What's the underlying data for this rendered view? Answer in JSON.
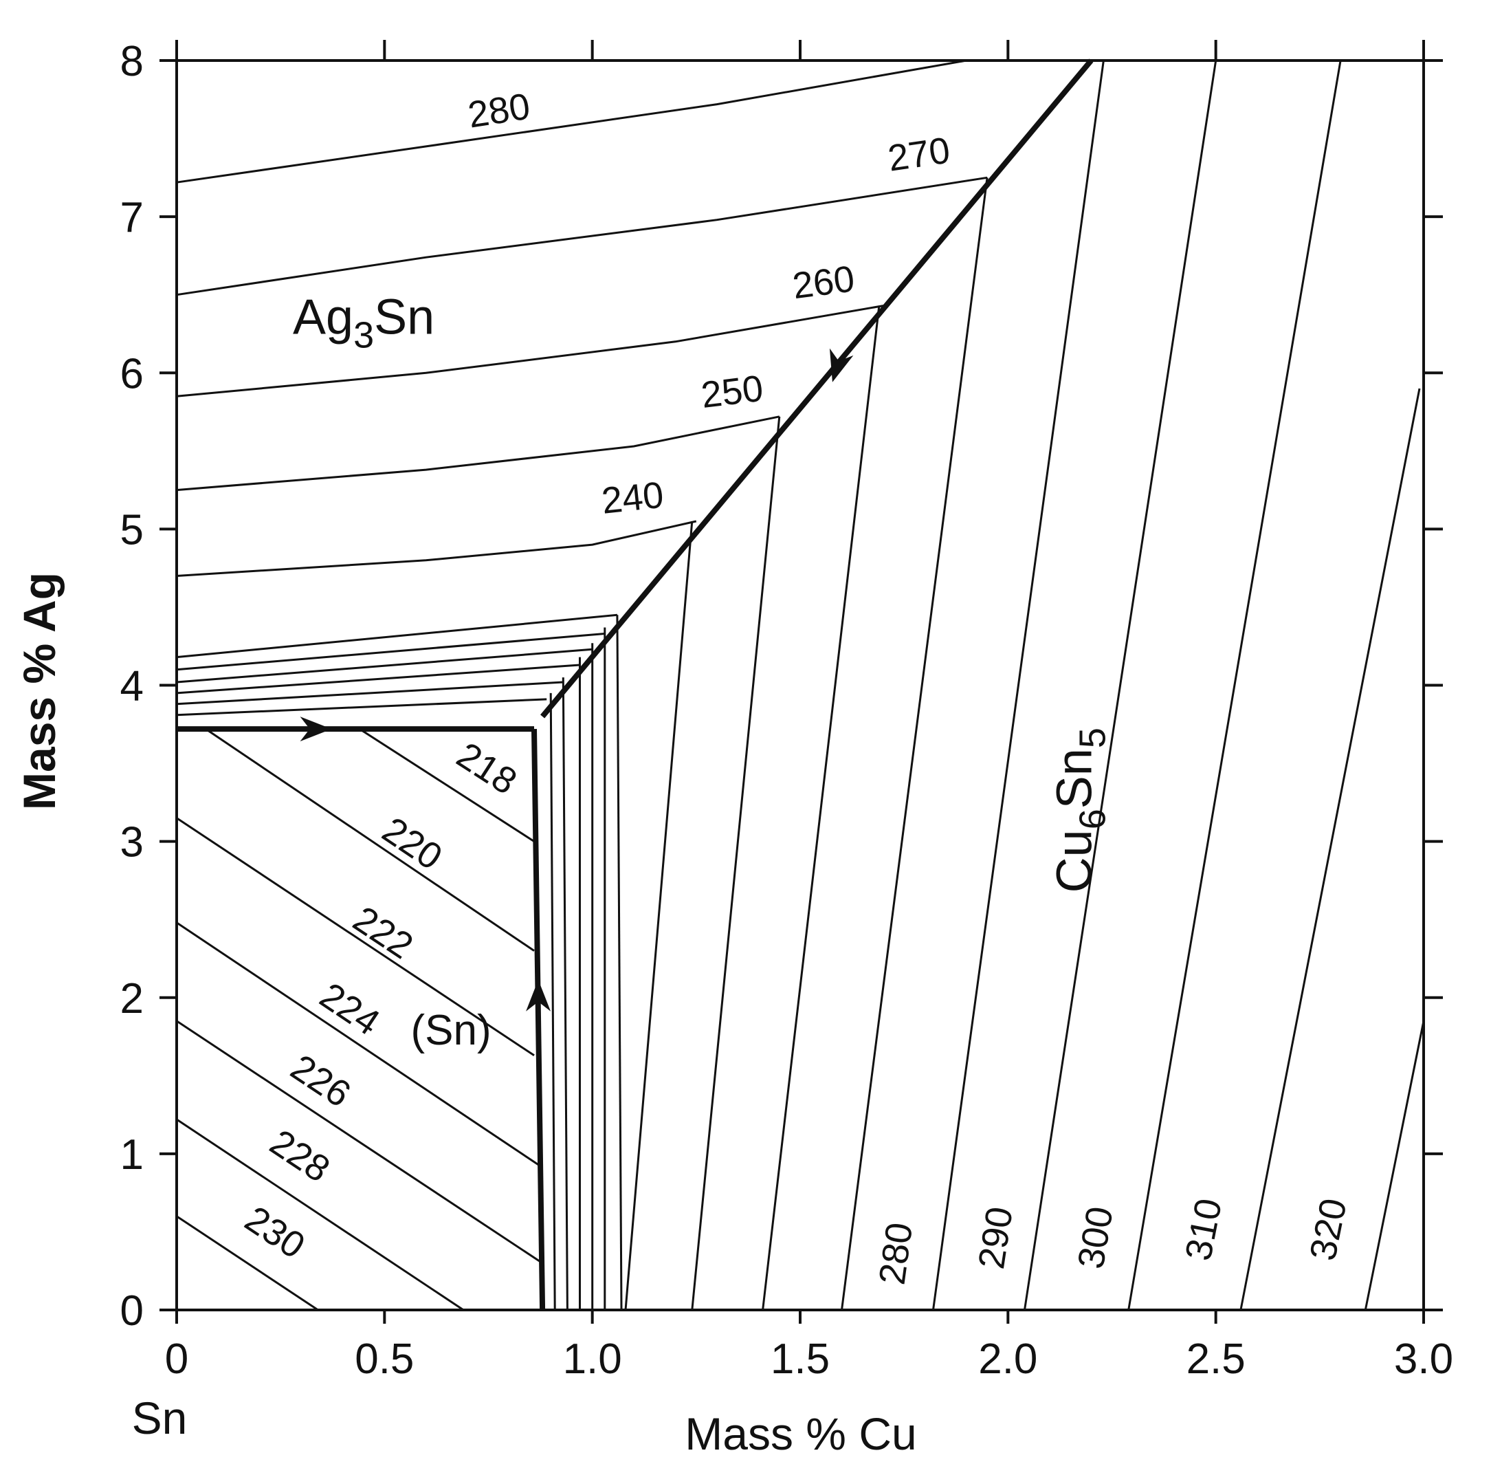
{
  "chart_data": {
    "type": "line",
    "title": "",
    "xlabel": "Mass % Cu",
    "ylabel": "Mass % Ag",
    "corner_label": "Sn",
    "xlim": [
      0,
      3.0
    ],
    "ylim": [
      0,
      8
    ],
    "x_ticks": [
      {
        "value": 0,
        "label": "0"
      },
      {
        "value": 0.5,
        "label": "0.5"
      },
      {
        "value": 1.0,
        "label": "1.0"
      },
      {
        "value": 1.5,
        "label": "1.5"
      },
      {
        "value": 2.0,
        "label": "2.0"
      },
      {
        "value": 2.5,
        "label": "2.5"
      },
      {
        "value": 3.0,
        "label": "3.0"
      }
    ],
    "y_ticks": [
      {
        "value": 0,
        "label": "0"
      },
      {
        "value": 1,
        "label": "1"
      },
      {
        "value": 2,
        "label": "2"
      },
      {
        "value": 3,
        "label": "3"
      },
      {
        "value": 4,
        "label": "4"
      },
      {
        "value": 5,
        "label": "5"
      },
      {
        "value": 6,
        "label": "6"
      },
      {
        "value": 7,
        "label": "7"
      },
      {
        "value": 8,
        "label": "8"
      }
    ],
    "phase_labels": [
      {
        "base": "Ag",
        "sub": "3",
        "rest": "Sn",
        "x": 0.45,
        "y": 6.25,
        "rotate": 0
      },
      {
        "base": "Cu",
        "sub": "6",
        "rest": "Sn",
        "sub2": "5",
        "x": 2.2,
        "y": 3.2,
        "rotate": -90
      },
      {
        "text": "(Sn)",
        "x": 0.66,
        "y": 1.7,
        "rotate": 0
      }
    ],
    "boundaries": [
      {
        "name": "Ag3Sn-Cu6Sn5",
        "points": [
          [
            0.88,
            3.8
          ],
          [
            2.2,
            8.0
          ]
        ]
      },
      {
        "name": "Sn-Ag3Sn",
        "points": [
          [
            0.0,
            3.72
          ],
          [
            0.86,
            3.72
          ]
        ]
      },
      {
        "name": "Sn-Cu6Sn5",
        "points": [
          [
            0.86,
            3.72
          ],
          [
            0.88,
            0.0
          ]
        ]
      }
    ],
    "arrows": [
      {
        "x": 0.33,
        "y": 3.72,
        "dir": [
          1,
          0
        ]
      },
      {
        "x": 1.59,
        "y": 6.05,
        "dir": [
          -0.3,
          -1
        ]
      },
      {
        "x": 0.87,
        "y": 2.0,
        "dir": [
          0,
          1
        ]
      }
    ],
    "isotherms_ag3sn": [
      {
        "label": "280",
        "points": [
          [
            0,
            7.22
          ],
          [
            0.6,
            7.45
          ],
          [
            1.3,
            7.72
          ],
          [
            1.9,
            8.0
          ]
        ],
        "lx": 0.78,
        "ly": 7.6
      },
      {
        "label": "270",
        "points": [
          [
            0,
            6.5
          ],
          [
            0.6,
            6.74
          ],
          [
            1.3,
            6.98
          ],
          [
            1.95,
            7.25
          ]
        ],
        "lx": 1.79,
        "ly": 7.32
      },
      {
        "label": "260",
        "points": [
          [
            0,
            5.85
          ],
          [
            0.6,
            6.0
          ],
          [
            1.2,
            6.2
          ],
          [
            1.7,
            6.43
          ]
        ],
        "lx": 1.56,
        "ly": 6.5
      },
      {
        "label": "250",
        "points": [
          [
            0,
            5.25
          ],
          [
            0.6,
            5.38
          ],
          [
            1.1,
            5.53
          ],
          [
            1.45,
            5.72
          ]
        ],
        "lx": 1.34,
        "ly": 5.8
      },
      {
        "label": "240",
        "points": [
          [
            0,
            4.7
          ],
          [
            0.6,
            4.8
          ],
          [
            1.0,
            4.9
          ],
          [
            1.25,
            5.05
          ]
        ],
        "lx": 1.1,
        "ly": 5.12
      },
      {
        "label": "",
        "points": [
          [
            0,
            4.18
          ],
          [
            1.06,
            4.45
          ]
        ],
        "lx": 0,
        "ly": 0
      },
      {
        "label": "",
        "points": [
          [
            0,
            4.1
          ],
          [
            1.03,
            4.33
          ]
        ],
        "lx": 0,
        "ly": 0
      },
      {
        "label": "",
        "points": [
          [
            0,
            4.02
          ],
          [
            1.0,
            4.23
          ]
        ],
        "lx": 0,
        "ly": 0
      },
      {
        "label": "",
        "points": [
          [
            0,
            3.95
          ],
          [
            0.97,
            4.13
          ]
        ],
        "lx": 0,
        "ly": 0
      },
      {
        "label": "",
        "points": [
          [
            0,
            3.88
          ],
          [
            0.93,
            4.02
          ]
        ],
        "lx": 0,
        "ly": 0
      },
      {
        "label": "",
        "points": [
          [
            0,
            3.81
          ],
          [
            0.89,
            3.91
          ]
        ],
        "lx": 0,
        "ly": 0
      }
    ],
    "isotherms_sn": [
      {
        "label": "218",
        "points": [
          [
            0.44,
            3.72
          ],
          [
            0.86,
            3.0
          ]
        ],
        "lx": 0.73,
        "ly": 3.4
      },
      {
        "label": "220",
        "points": [
          [
            0.07,
            3.72
          ],
          [
            0.86,
            2.3
          ]
        ],
        "lx": 0.55,
        "ly": 2.92
      },
      {
        "label": "222",
        "points": [
          [
            0,
            3.15
          ],
          [
            0.86,
            1.63
          ]
        ],
        "lx": 0.48,
        "ly": 2.35
      },
      {
        "label": "224",
        "points": [
          [
            0,
            2.48
          ],
          [
            0.87,
            0.93
          ]
        ],
        "lx": 0.4,
        "ly": 1.86
      },
      {
        "label": "226",
        "points": [
          [
            0,
            1.85
          ],
          [
            0.88,
            0.3
          ]
        ],
        "lx": 0.33,
        "ly": 1.4
      },
      {
        "label": "228",
        "points": [
          [
            0,
            1.22
          ],
          [
            0.69,
            0.0
          ]
        ],
        "lx": 0.28,
        "ly": 0.92
      },
      {
        "label": "230",
        "points": [
          [
            0,
            0.6
          ],
          [
            0.34,
            0.0
          ]
        ],
        "lx": 0.22,
        "ly": 0.43
      }
    ],
    "isotherms_cu6sn5": [
      {
        "label": "",
        "points": [
          [
            0.91,
            0.0
          ],
          [
            0.9,
            3.95
          ]
        ],
        "lx": 0,
        "ly": 0
      },
      {
        "label": "",
        "points": [
          [
            0.94,
            0.0
          ],
          [
            0.93,
            4.05
          ]
        ],
        "lx": 0,
        "ly": 0
      },
      {
        "label": "",
        "points": [
          [
            0.97,
            0.0
          ],
          [
            0.97,
            4.18
          ]
        ],
        "lx": 0,
        "ly": 0
      },
      {
        "label": "",
        "points": [
          [
            1.0,
            0.0
          ],
          [
            1.0,
            4.27
          ]
        ],
        "lx": 0,
        "ly": 0
      },
      {
        "label": "",
        "points": [
          [
            1.03,
            0.0
          ],
          [
            1.03,
            4.37
          ]
        ],
        "lx": 0,
        "ly": 0
      },
      {
        "label": "",
        "points": [
          [
            1.07,
            0.0
          ],
          [
            1.06,
            4.45
          ]
        ],
        "lx": 0,
        "ly": 0
      },
      {
        "label": "",
        "points": [
          [
            1.08,
            0.0
          ],
          [
            1.24,
            5.05
          ]
        ],
        "lx": 0,
        "ly": 0
      },
      {
        "label": "",
        "points": [
          [
            1.24,
            0.0
          ],
          [
            1.45,
            5.72
          ]
        ],
        "lx": 0,
        "ly": 0
      },
      {
        "label": "",
        "points": [
          [
            1.41,
            0.0
          ],
          [
            1.69,
            6.43
          ]
        ],
        "lx": 0,
        "ly": 0
      },
      {
        "label": "",
        "points": [
          [
            1.6,
            0.0
          ],
          [
            1.95,
            7.25
          ]
        ],
        "lx": 0,
        "ly": 0
      },
      {
        "label": "280",
        "points": [
          [
            1.82,
            0.0
          ],
          [
            2.23,
            8.0
          ]
        ],
        "lx": 1.76,
        "ly": 0.35
      },
      {
        "label": "290",
        "points": [
          [
            2.04,
            0.0
          ],
          [
            2.5,
            8.0
          ]
        ],
        "lx": 2.0,
        "ly": 0.45
      },
      {
        "label": "300",
        "points": [
          [
            2.29,
            0.0
          ],
          [
            2.8,
            8.0
          ]
        ],
        "lx": 2.24,
        "ly": 0.45
      },
      {
        "label": "310",
        "points": [
          [
            2.56,
            0.0
          ],
          [
            2.99,
            5.9
          ]
        ],
        "lx": 2.5,
        "ly": 0.5
      },
      {
        "label": "320",
        "points": [
          [
            2.86,
            0.0
          ],
          [
            3.0,
            1.85
          ]
        ],
        "lx": 2.8,
        "ly": 0.5
      }
    ]
  }
}
